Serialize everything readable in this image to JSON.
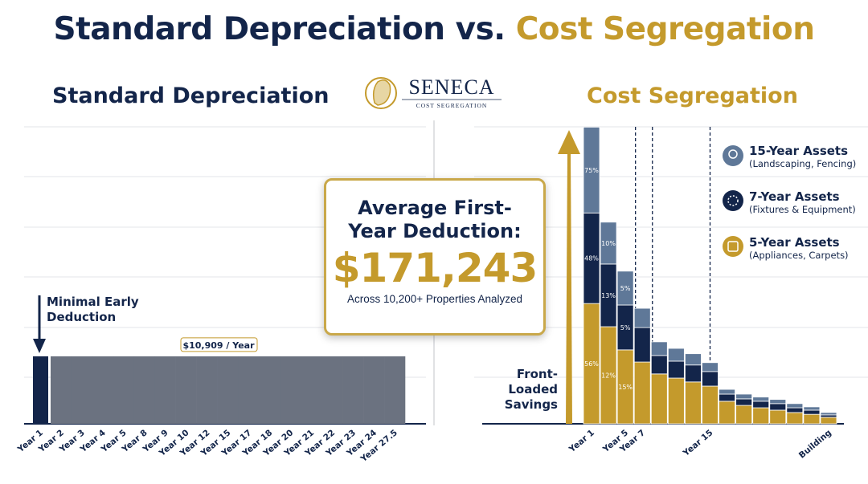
{
  "header": {
    "title_part1": "Standard Depreciation vs.",
    "title_part2": "Cost Segregation"
  },
  "logo": {
    "name": "SENECA",
    "tagline": "COST SEGREGATION"
  },
  "callout": {
    "heading": "Average First-Year Deduction:",
    "amount": "$171,243",
    "note": "Across 10,200+ Properties Analyzed"
  },
  "chart_data": [
    {
      "type": "bar",
      "title": "Standard Depreciation",
      "categories": [
        "Year 1",
        "Year 2",
        "Year 3",
        "Year 4",
        "Year 5",
        "Year 8",
        "Year 9",
        "Year 10",
        "Year 12",
        "Year 15",
        "Year 17",
        "Year 18",
        "Year 20",
        "Year 21",
        "Year 22",
        "Year 23",
        "Year 24",
        "Year 27.5"
      ],
      "values": [
        10909,
        10909,
        10909,
        10909,
        10909,
        10909,
        10909,
        10909,
        10909,
        10909,
        10909,
        10909,
        10909,
        10909,
        10909,
        10909,
        10909,
        10909
      ],
      "color": "#6b7280",
      "highlight_color": "#13254a",
      "highlight_index": 0,
      "ylim": [
        0,
        48000
      ],
      "annotations": [
        "Minimal Early Deduction",
        "$10,909 / Year"
      ]
    },
    {
      "type": "bar",
      "stacked": true,
      "title": "Cost Segregation",
      "categories": [
        "Year 1",
        null,
        "Year 5",
        "Year 7",
        null,
        null,
        null,
        "Year 15",
        null,
        null,
        null,
        null,
        null,
        null,
        "Building"
      ],
      "ylim": [
        0,
        100
      ],
      "series": [
        {
          "name": "5-Year Assets",
          "note": "(Appliances, Carpets)",
          "color": "#c49a2c",
          "values": [
            40.5,
            32.7,
            24.9,
            20.8,
            16.8,
            15.4,
            14.1,
            12.7,
            7.6,
            6.2,
            5.4,
            4.6,
            3.8,
            3.2,
            2.2
          ],
          "labels": [
            "56%",
            "12%",
            "15%"
          ]
        },
        {
          "name": "7-Year Assets",
          "note": "(Fixtures & Equipment)",
          "color": "#13254a",
          "values": [
            30.5,
            21.1,
            15.1,
            11.6,
            6.2,
            5.7,
            5.7,
            4.9,
            2.4,
            2.2,
            2.2,
            2.2,
            1.6,
            1.4,
            0.8
          ],
          "labels": [
            "48%",
            "13%",
            "5%"
          ]
        },
        {
          "name": "15-Year Assets",
          "note": "(Landscaping, Fencing)",
          "color": "#5f7898",
          "values": [
            28.9,
            14.1,
            11.4,
            6.5,
            4.6,
            4.3,
            3.8,
            3.0,
            1.6,
            1.6,
            1.4,
            1.4,
            1.4,
            1.1,
            0.8
          ],
          "labels": [
            "75%",
            "10%",
            "5%"
          ]
        }
      ],
      "annotations": [
        "Front-Loaded Savings"
      ]
    }
  ]
}
